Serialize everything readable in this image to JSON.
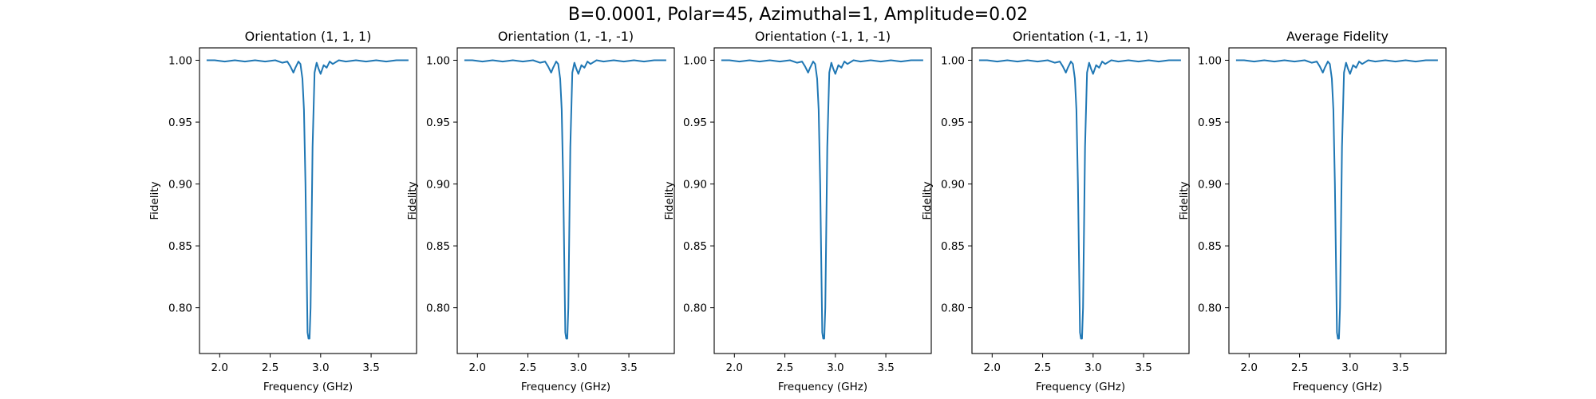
{
  "figure": {
    "suptitle": "B=0.0001, Polar=45, Azimuthal=1, Amplitude=0.02",
    "line_color": "#1f77b4"
  },
  "chart_data": [
    {
      "type": "line",
      "title": "Orientation (1, 1, 1)",
      "xlabel": "Frequency (GHz)",
      "ylabel": "Fidelity",
      "xlim": [
        1.8,
        3.95
      ],
      "ylim": [
        0.763,
        1.01
      ],
      "xticks": [
        "2.0",
        "2.5",
        "3.0",
        "3.5"
      ],
      "yticks": [
        "0.80",
        "0.85",
        "0.90",
        "0.95",
        "1.00"
      ],
      "grid": false,
      "series": [
        {
          "x": [
            1.87,
            1.95,
            2.05,
            2.15,
            2.25,
            2.35,
            2.45,
            2.55,
            2.62,
            2.67,
            2.7,
            2.73,
            2.75,
            2.78,
            2.8,
            2.82,
            2.835,
            2.85,
            2.86,
            2.87,
            2.88,
            2.89,
            2.9,
            2.92,
            2.94,
            2.96,
            2.98,
            3.0,
            3.03,
            3.06,
            3.09,
            3.12,
            3.18,
            3.25,
            3.35,
            3.45,
            3.55,
            3.65,
            3.75,
            3.87
          ],
          "y": [
            1.0,
            1.0,
            0.999,
            1.0,
            0.999,
            1.0,
            0.999,
            1.0,
            0.998,
            0.999,
            0.995,
            0.99,
            0.994,
            0.999,
            0.997,
            0.985,
            0.96,
            0.9,
            0.84,
            0.78,
            0.775,
            0.775,
            0.8,
            0.93,
            0.99,
            0.998,
            0.993,
            0.989,
            0.996,
            0.994,
            0.999,
            0.997,
            1.0,
            0.999,
            1.0,
            0.999,
            1.0,
            0.999,
            1.0,
            1.0
          ]
        }
      ]
    },
    {
      "type": "line",
      "title": "Orientation (1, -1, -1)",
      "xlabel": "Frequency (GHz)",
      "ylabel": "Fidelity",
      "xlim": [
        1.8,
        3.95
      ],
      "ylim": [
        0.763,
        1.01
      ],
      "xticks": [
        "2.0",
        "2.5",
        "3.0",
        "3.5"
      ],
      "yticks": [
        "0.80",
        "0.85",
        "0.90",
        "0.95",
        "1.00"
      ],
      "grid": false,
      "series": [
        {
          "x": [
            1.87,
            1.95,
            2.05,
            2.15,
            2.25,
            2.35,
            2.45,
            2.55,
            2.62,
            2.67,
            2.7,
            2.73,
            2.75,
            2.78,
            2.8,
            2.82,
            2.835,
            2.85,
            2.86,
            2.87,
            2.88,
            2.89,
            2.9,
            2.92,
            2.94,
            2.96,
            2.98,
            3.0,
            3.03,
            3.06,
            3.09,
            3.12,
            3.18,
            3.25,
            3.35,
            3.45,
            3.55,
            3.65,
            3.75,
            3.87
          ],
          "y": [
            1.0,
            1.0,
            0.999,
            1.0,
            0.999,
            1.0,
            0.999,
            1.0,
            0.998,
            0.999,
            0.995,
            0.99,
            0.994,
            0.999,
            0.997,
            0.985,
            0.96,
            0.9,
            0.84,
            0.78,
            0.775,
            0.775,
            0.8,
            0.93,
            0.99,
            0.998,
            0.993,
            0.989,
            0.996,
            0.994,
            0.999,
            0.997,
            1.0,
            0.999,
            1.0,
            0.999,
            1.0,
            0.999,
            1.0,
            1.0
          ]
        }
      ]
    },
    {
      "type": "line",
      "title": "Orientation (-1, 1, -1)",
      "xlabel": "Frequency (GHz)",
      "ylabel": "Fidelity",
      "xlim": [
        1.8,
        3.95
      ],
      "ylim": [
        0.763,
        1.01
      ],
      "xticks": [
        "2.0",
        "2.5",
        "3.0",
        "3.5"
      ],
      "yticks": [
        "0.80",
        "0.85",
        "0.90",
        "0.95",
        "1.00"
      ],
      "grid": false,
      "series": [
        {
          "x": [
            1.87,
            1.95,
            2.05,
            2.15,
            2.25,
            2.35,
            2.45,
            2.55,
            2.62,
            2.67,
            2.7,
            2.73,
            2.75,
            2.78,
            2.8,
            2.82,
            2.835,
            2.85,
            2.86,
            2.87,
            2.88,
            2.89,
            2.9,
            2.92,
            2.94,
            2.96,
            2.98,
            3.0,
            3.03,
            3.06,
            3.09,
            3.12,
            3.18,
            3.25,
            3.35,
            3.45,
            3.55,
            3.65,
            3.75,
            3.87
          ],
          "y": [
            1.0,
            1.0,
            0.999,
            1.0,
            0.999,
            1.0,
            0.999,
            1.0,
            0.998,
            0.999,
            0.995,
            0.99,
            0.994,
            0.999,
            0.997,
            0.985,
            0.96,
            0.9,
            0.84,
            0.78,
            0.775,
            0.775,
            0.8,
            0.93,
            0.99,
            0.998,
            0.993,
            0.989,
            0.996,
            0.994,
            0.999,
            0.997,
            1.0,
            0.999,
            1.0,
            0.999,
            1.0,
            0.999,
            1.0,
            1.0
          ]
        }
      ]
    },
    {
      "type": "line",
      "title": "Orientation (-1, -1, 1)",
      "xlabel": "Frequency (GHz)",
      "ylabel": "Fidelity",
      "xlim": [
        1.8,
        3.95
      ],
      "ylim": [
        0.763,
        1.01
      ],
      "xticks": [
        "2.0",
        "2.5",
        "3.0",
        "3.5"
      ],
      "yticks": [
        "0.80",
        "0.85",
        "0.90",
        "0.95",
        "1.00"
      ],
      "grid": false,
      "series": [
        {
          "x": [
            1.87,
            1.95,
            2.05,
            2.15,
            2.25,
            2.35,
            2.45,
            2.55,
            2.62,
            2.67,
            2.7,
            2.73,
            2.75,
            2.78,
            2.8,
            2.82,
            2.835,
            2.85,
            2.86,
            2.87,
            2.88,
            2.89,
            2.9,
            2.92,
            2.94,
            2.96,
            2.98,
            3.0,
            3.03,
            3.06,
            3.09,
            3.12,
            3.18,
            3.25,
            3.35,
            3.45,
            3.55,
            3.65,
            3.75,
            3.87
          ],
          "y": [
            1.0,
            1.0,
            0.999,
            1.0,
            0.999,
            1.0,
            0.999,
            1.0,
            0.998,
            0.999,
            0.995,
            0.99,
            0.994,
            0.999,
            0.997,
            0.985,
            0.96,
            0.9,
            0.84,
            0.78,
            0.775,
            0.775,
            0.8,
            0.93,
            0.99,
            0.998,
            0.993,
            0.989,
            0.996,
            0.994,
            0.999,
            0.997,
            1.0,
            0.999,
            1.0,
            0.999,
            1.0,
            0.999,
            1.0,
            1.0
          ]
        }
      ]
    },
    {
      "type": "line",
      "title": "Average Fidelity",
      "xlabel": "Frequency (GHz)",
      "ylabel": "Fidelity",
      "xlim": [
        1.8,
        3.95
      ],
      "ylim": [
        0.763,
        1.01
      ],
      "xticks": [
        "2.0",
        "2.5",
        "3.0",
        "3.5"
      ],
      "yticks": [
        "0.80",
        "0.85",
        "0.90",
        "0.95",
        "1.00"
      ],
      "grid": false,
      "series": [
        {
          "x": [
            1.87,
            1.95,
            2.05,
            2.15,
            2.25,
            2.35,
            2.45,
            2.55,
            2.62,
            2.67,
            2.7,
            2.73,
            2.75,
            2.78,
            2.8,
            2.82,
            2.835,
            2.85,
            2.86,
            2.87,
            2.88,
            2.89,
            2.9,
            2.92,
            2.94,
            2.96,
            2.98,
            3.0,
            3.03,
            3.06,
            3.09,
            3.12,
            3.18,
            3.25,
            3.35,
            3.45,
            3.55,
            3.65,
            3.75,
            3.87
          ],
          "y": [
            1.0,
            1.0,
            0.999,
            1.0,
            0.999,
            1.0,
            0.999,
            1.0,
            0.998,
            0.999,
            0.995,
            0.99,
            0.994,
            0.999,
            0.997,
            0.985,
            0.96,
            0.9,
            0.84,
            0.78,
            0.775,
            0.775,
            0.8,
            0.93,
            0.99,
            0.998,
            0.993,
            0.989,
            0.996,
            0.994,
            0.999,
            0.997,
            1.0,
            0.999,
            1.0,
            0.999,
            1.0,
            0.999,
            1.0,
            1.0
          ]
        }
      ]
    }
  ]
}
